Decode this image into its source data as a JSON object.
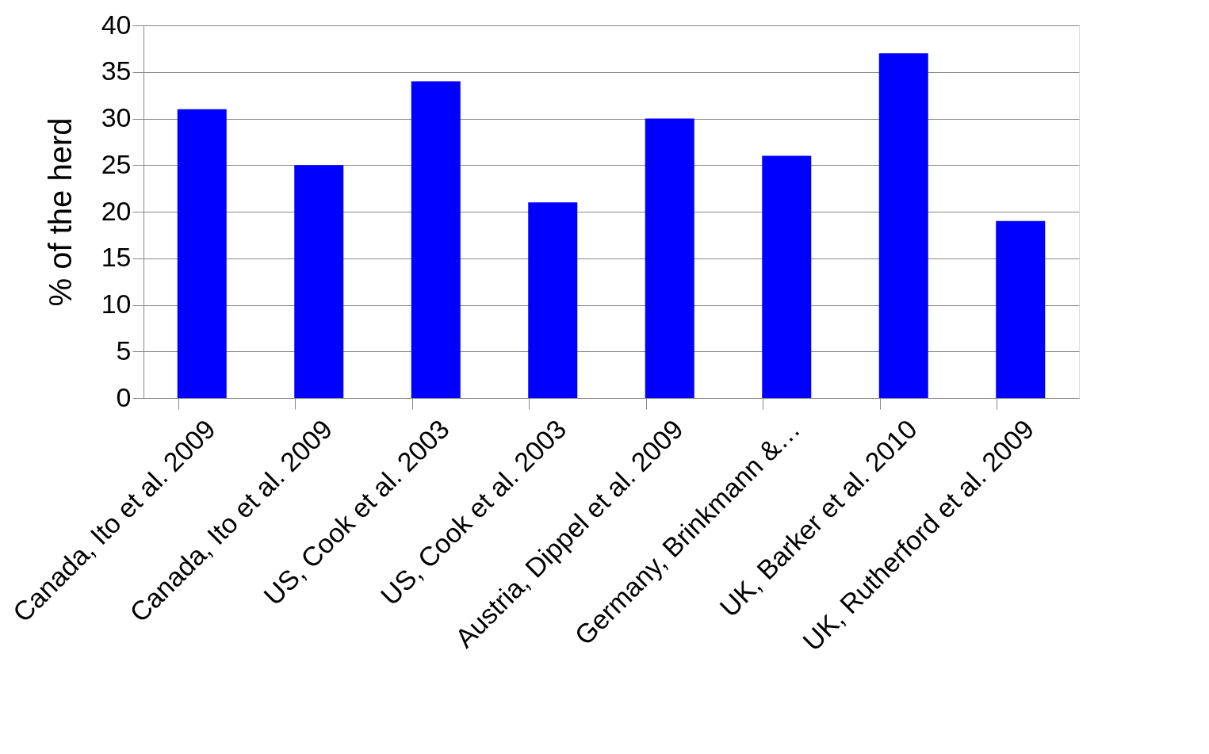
{
  "chart_data": {
    "type": "bar",
    "ylabel": "% of  the herd",
    "categories": [
      "Canada, Ito et al. 2009",
      "Canada, Ito et al. 2009",
      "US, Cook et al. 2003",
      "US, Cook et al. 2003",
      "Austria, Dippel et al. 2009",
      "Germany, Brinkmann &…",
      "UK, Barker et al. 2010",
      "UK, Rutherford et al. 2009"
    ],
    "values": [
      31,
      25,
      34,
      21,
      30,
      26,
      37,
      19
    ],
    "color": "#0000ff",
    "ylim": [
      0,
      40
    ],
    "yticks": [
      0,
      5,
      10,
      15,
      20,
      25,
      30,
      35,
      40
    ],
    "grid": "y"
  }
}
